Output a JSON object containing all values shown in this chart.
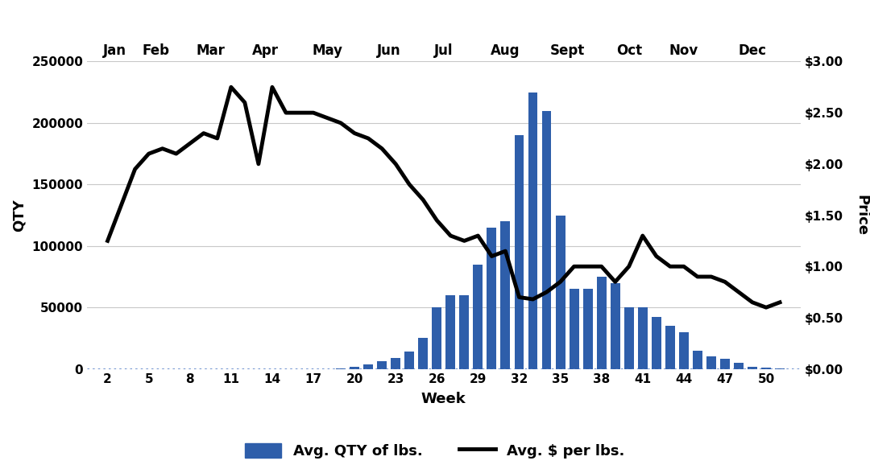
{
  "weeks": [
    2,
    3,
    4,
    5,
    6,
    7,
    8,
    9,
    10,
    11,
    12,
    13,
    14,
    15,
    16,
    17,
    18,
    19,
    20,
    21,
    22,
    23,
    24,
    25,
    26,
    27,
    28,
    29,
    30,
    31,
    32,
    33,
    34,
    35,
    36,
    37,
    38,
    39,
    40,
    41,
    42,
    43,
    44,
    45,
    46,
    47,
    48,
    49,
    50,
    51
  ],
  "qty": [
    0,
    0,
    0,
    0,
    0,
    0,
    0,
    0,
    0,
    0,
    0,
    0,
    0,
    0,
    0,
    0,
    0,
    500,
    1500,
    3500,
    6000,
    9000,
    14000,
    25000,
    50000,
    60000,
    60000,
    85000,
    115000,
    120000,
    190000,
    225000,
    210000,
    125000,
    65000,
    65000,
    75000,
    70000,
    50000,
    50000,
    42000,
    35000,
    30000,
    15000,
    10000,
    8000,
    5000,
    2000,
    1000,
    500
  ],
  "price": [
    1.25,
    1.6,
    1.95,
    2.1,
    2.15,
    2.1,
    2.2,
    2.3,
    2.25,
    2.75,
    2.6,
    2.0,
    2.75,
    2.5,
    2.5,
    2.5,
    2.45,
    2.4,
    2.3,
    2.25,
    2.15,
    2.0,
    1.8,
    1.65,
    1.45,
    1.3,
    1.25,
    1.3,
    1.1,
    1.15,
    0.7,
    0.68,
    0.75,
    0.85,
    1.0,
    1.0,
    1.0,
    0.85,
    1.0,
    1.3,
    1.1,
    1.0,
    1.0,
    0.9,
    0.9,
    0.85,
    0.75,
    0.65,
    0.6,
    0.65
  ],
  "xtick_labels": [
    "2",
    "5",
    "8",
    "11",
    "14",
    "17",
    "20",
    "23",
    "26",
    "29",
    "32",
    "35",
    "38",
    "41",
    "44",
    "47",
    "50"
  ],
  "xtick_positions": [
    2,
    5,
    8,
    11,
    14,
    17,
    20,
    23,
    26,
    29,
    32,
    35,
    38,
    41,
    44,
    47,
    50
  ],
  "month_labels": [
    "Jan",
    "Feb",
    "Mar",
    "Apr",
    "May",
    "Jun",
    "Jul",
    "Aug",
    "Sept",
    "Oct",
    "Nov",
    "Dec"
  ],
  "month_positions": [
    2.5,
    5.5,
    9.5,
    13.5,
    18.0,
    22.5,
    26.5,
    31.0,
    35.5,
    40.0,
    44.0,
    49.0
  ],
  "qty_ylim": [
    0,
    250000
  ],
  "price_ylim": [
    0,
    3.0
  ],
  "qty_yticks": [
    0,
    50000,
    100000,
    150000,
    200000,
    250000
  ],
  "price_yticks": [
    0.0,
    0.5,
    1.0,
    1.5,
    2.0,
    2.5,
    3.0
  ],
  "price_yticklabels": [
    "$0.00",
    "$0.50",
    "$1.00",
    "$1.50",
    "$2.00",
    "$2.50",
    "$3.00"
  ],
  "qty_yticklabels": [
    "0",
    "50000",
    "100000",
    "150000",
    "200000",
    "250000"
  ],
  "xlabel": "Week",
  "ylabel_left": "QTY",
  "ylabel_right": "Price",
  "bar_color": "#2E5EAA",
  "line_color": "#000000",
  "legend_bar_label": "Avg. QTY of lbs.",
  "legend_line_label": "Avg. $ per lbs.",
  "background_color": "#ffffff",
  "grid_color": "#c8c8c8",
  "dotted_line_color": "#4472C4"
}
